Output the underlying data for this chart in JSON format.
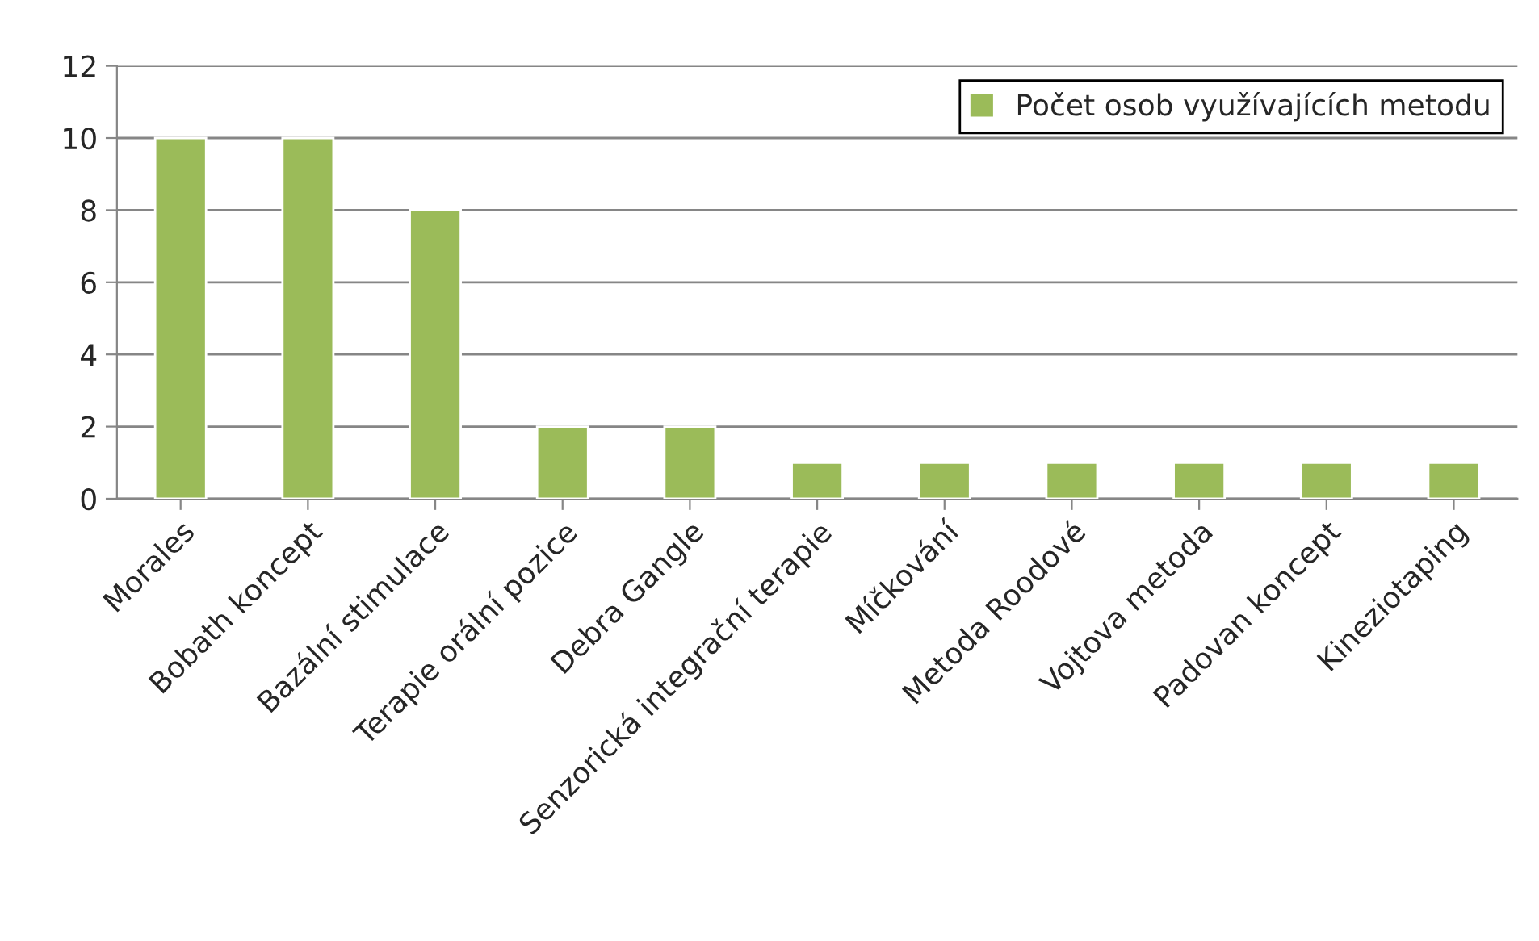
{
  "chart_data": {
    "type": "bar",
    "categories": [
      "Morales",
      "Bobath koncept",
      "Bazální stimulace",
      "Terapie orální pozice",
      "Debra Gangle",
      "Senzorická integrační terapie",
      "Míčkování",
      "Metoda Roodové",
      "Vojtova metoda",
      "Padovan koncept",
      "Kineziotaping"
    ],
    "series": [
      {
        "name": "Počet osob využívajících metodu",
        "color": "#9bbb59",
        "values": [
          10,
          10,
          8,
          2,
          2,
          1,
          1,
          1,
          1,
          1,
          1
        ]
      }
    ],
    "ylim": [
      0,
      12
    ],
    "yticks": [
      0,
      2,
      4,
      6,
      8,
      10,
      12
    ],
    "grid": "y",
    "legend": "top right"
  }
}
